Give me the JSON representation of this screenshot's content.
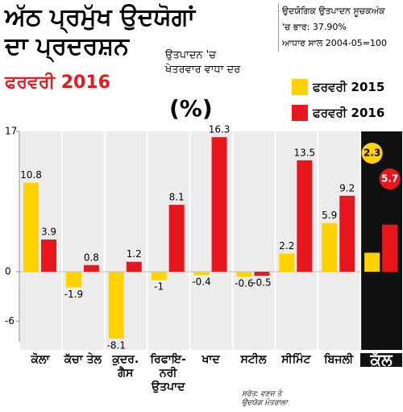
{
  "chart_data": {
    "type": "bar",
    "title": [
      "ਅੱਠ ਪ੍ਰਮੁੱਖ ਉਦਯੋਗਾਂ",
      "ਦਾ ਪ੍ਰਦਰਸ਼ਨ"
    ],
    "subtitle": "ਫਰਵਰੀ 2016",
    "y_label": [
      "ਉਤਪਾਦਨ 'ਚ",
      "ਖੇਤਰਵਾਰ ਵਾਧਾ ਦਰ",
      "(%)"
    ],
    "note": [
      "ਉਦਯੋਗਿਕ ਉਤਪਾਦਨ ਸੂਚਕਅੰਕ",
      "'ਚ ਭਾਰ: 37.90%",
      "ਆਧਾਰ ਸਾਲ 2004-05=100"
    ],
    "source": [
      "ਸਰੋਤ: ਵਣਜ ਤੇ",
      "ਉਦਯੋਗ ਮੰਤਰਾਲਾ"
    ],
    "categories": [
      "ਕੋਲਾ",
      "ਕੱਚਾ ਤੇਲ",
      "ਕੁਦਰ. ਗੈਸ",
      "ਰਿਫਾਇ-ਨਰੀ ਉਤਪਾਦ",
      "ਖਾਦ",
      "ਸਟੀਲ",
      "ਸੀਮਿੰਟ",
      "ਬਿਜਲੀ",
      "ਕੁੱਲ"
    ],
    "series": [
      {
        "name": "ਫਰਵਰੀ 2015",
        "color": "#ffd200",
        "values": [
          10.8,
          -1.9,
          -8.1,
          -1,
          -0.4,
          -0.6,
          2.2,
          5.9,
          2.3
        ]
      },
      {
        "name": "ਫਰਵਰੀ 2016",
        "color": "#e8161d",
        "values": [
          3.9,
          0.8,
          1.2,
          8.1,
          16.3,
          -0.5,
          13.5,
          9.2,
          5.7
        ]
      }
    ],
    "ylim": [
      -8.5,
      17
    ],
    "yticks": [
      -6,
      0,
      17
    ]
  }
}
